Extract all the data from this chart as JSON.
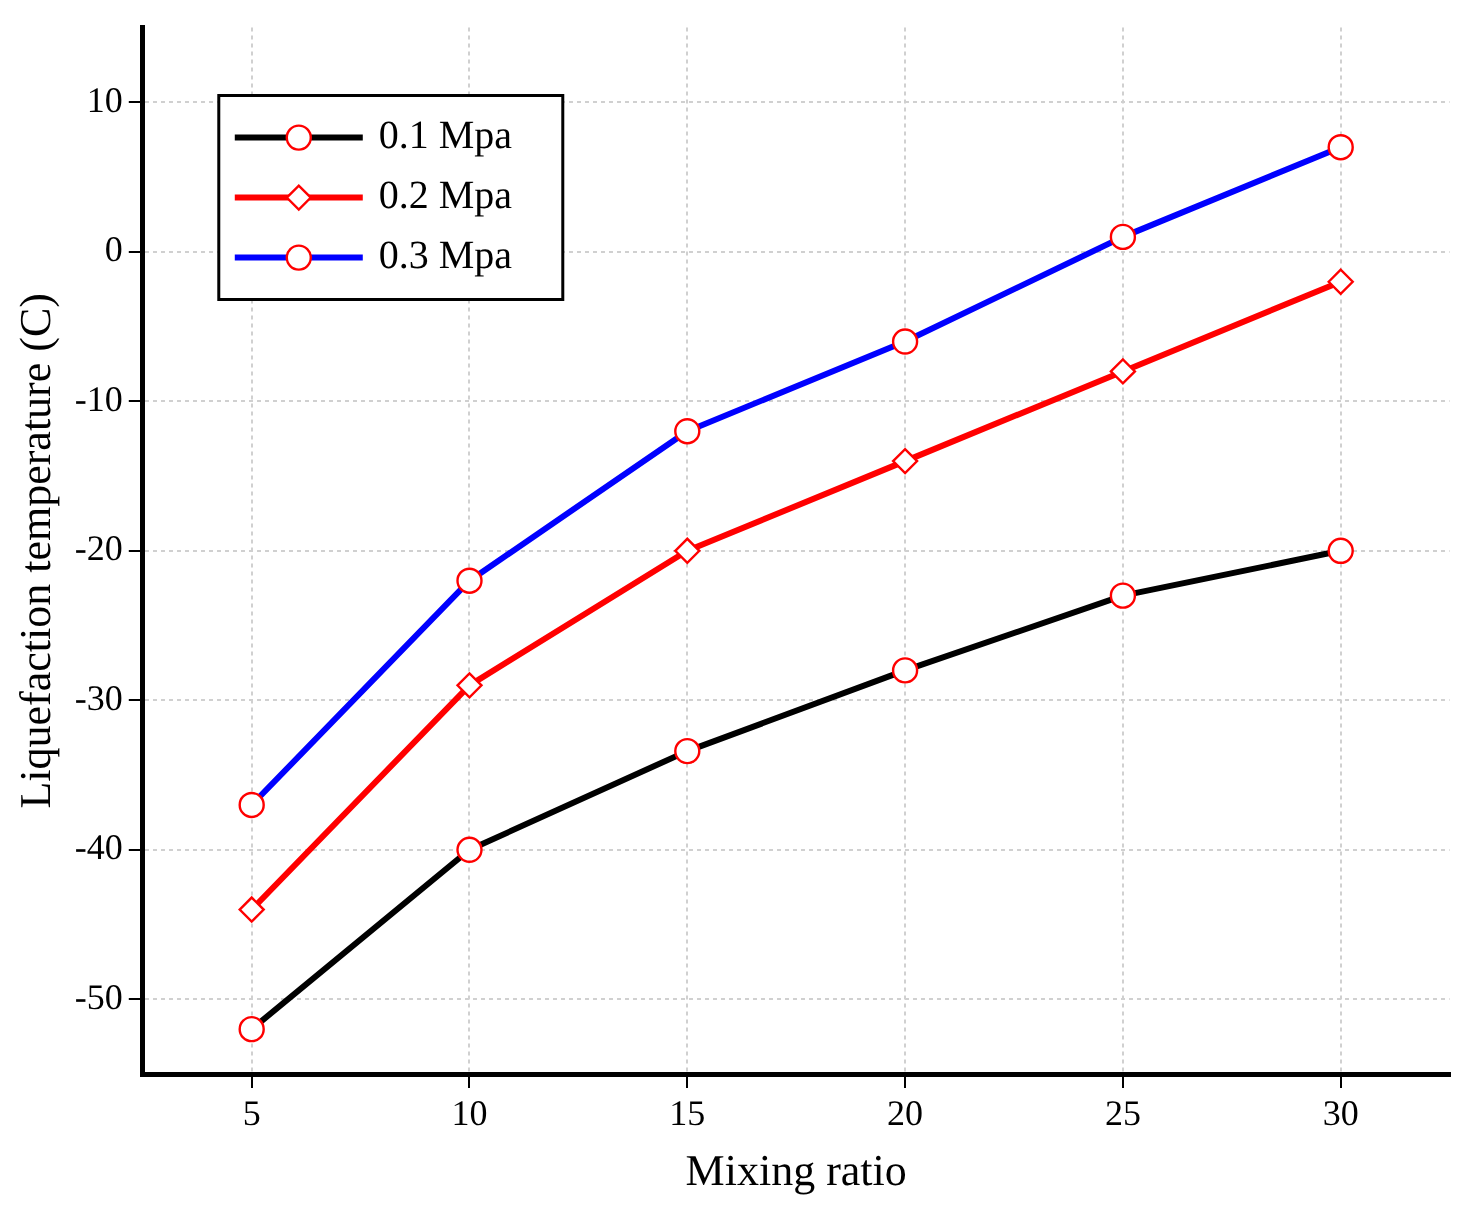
{
  "chart_data": {
    "type": "line",
    "xlabel": "Mixing ratio",
    "ylabel": "Liquefaction temperature (C)",
    "x": [
      5,
      10,
      15,
      20,
      25,
      30
    ],
    "series": [
      {
        "name": "0.1 Mpa",
        "color": "#000000",
        "marker": "circle",
        "values": [
          -52,
          -40,
          -33.4,
          -28,
          -23,
          -20
        ]
      },
      {
        "name": "0.2 Mpa",
        "color": "#ff0000",
        "marker": "diamond",
        "values": [
          -44,
          -29,
          -20,
          -14,
          -8,
          -2
        ]
      },
      {
        "name": "0.3 Mpa",
        "color": "#0000ff",
        "marker": "circle",
        "values": [
          -37,
          -22,
          -12,
          -6,
          1,
          7
        ]
      }
    ],
    "xlim": [
      2.5,
      32.5
    ],
    "xticks": [
      5,
      10,
      15,
      20,
      25,
      30
    ],
    "ylim": [
      -55,
      15
    ],
    "yticks": [
      -50,
      -40,
      -30,
      -20,
      -10,
      0,
      10
    ],
    "grid": true,
    "legend": "top left",
    "line_style": "solid"
  }
}
